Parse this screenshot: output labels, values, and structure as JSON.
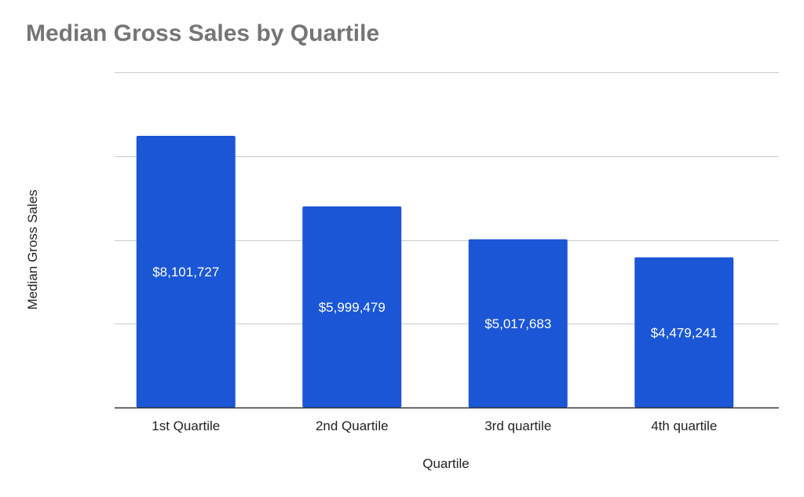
{
  "chart_data": {
    "type": "bar",
    "title": "Median Gross Sales by Quartile",
    "xlabel": "Quartile",
    "ylabel": "Median Gross Sales",
    "categories": [
      "1st Quartile",
      "2nd Quartile",
      "3rd quartile",
      "4th quartile"
    ],
    "series": [
      {
        "values": [
          8101727,
          5999479,
          5017683,
          4479241
        ],
        "data_labels": [
          "$8,101,727",
          "$5,999,479",
          "$5,017,683",
          "$4,479,241"
        ],
        "color": "#1a56d6"
      }
    ],
    "ylim": [
      0,
      10000000
    ],
    "y_gridlines": [
      2500000,
      5000000,
      7500000,
      10000000
    ],
    "y_tick_labels_shown": false,
    "grid": true,
    "legend": "none",
    "colors": {
      "title": "#757575",
      "gridline": "#cccccc",
      "axis_line": "#333333",
      "text": "#222222",
      "data_label": "#ffffff"
    }
  }
}
